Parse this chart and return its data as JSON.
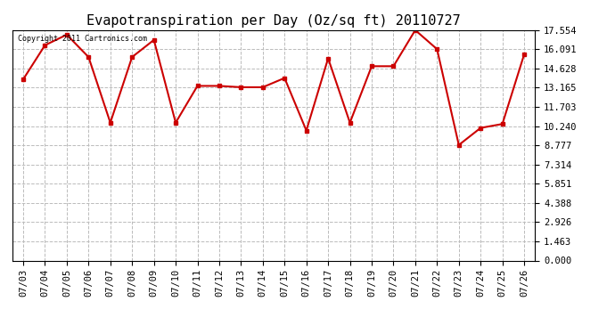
{
  "title": "Evapotranspiration per Day (Oz/sq ft) 20110727",
  "copyright_text": "Copyright 2011 Cartronics.com",
  "dates": [
    "07/03",
    "07/04",
    "07/05",
    "07/06",
    "07/07",
    "07/08",
    "07/09",
    "07/10",
    "07/11",
    "07/12",
    "07/13",
    "07/14",
    "07/15",
    "07/16",
    "07/17",
    "07/18",
    "07/19",
    "07/20",
    "07/21",
    "07/22",
    "07/23",
    "07/24",
    "07/25",
    "07/26"
  ],
  "values": [
    13.8,
    16.4,
    17.2,
    15.5,
    10.5,
    15.5,
    16.8,
    10.5,
    13.3,
    13.3,
    13.2,
    13.2,
    13.9,
    9.9,
    15.4,
    10.5,
    14.8,
    14.8,
    17.55,
    16.1,
    8.8,
    10.1,
    10.4,
    15.7
  ],
  "yticks": [
    0.0,
    1.463,
    2.926,
    4.388,
    5.851,
    7.314,
    8.777,
    10.24,
    11.703,
    13.165,
    14.628,
    16.091,
    17.554
  ],
  "ylim": [
    0.0,
    17.554
  ],
  "line_color": "#cc0000",
  "marker_color": "#cc0000",
  "bg_color": "#ffffff",
  "grid_color": "#bbbbbb",
  "title_fontsize": 11,
  "tick_fontsize": 7.5,
  "copyright_fontsize": 6
}
